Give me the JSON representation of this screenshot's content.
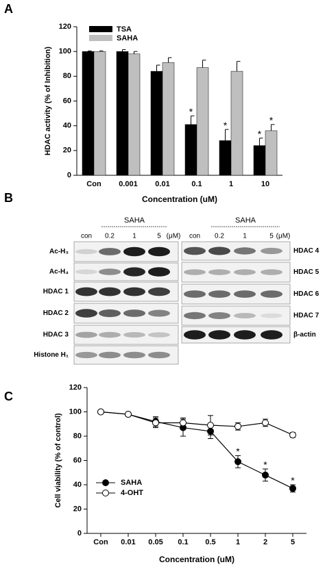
{
  "chart_data": [
    {
      "type": "bar",
      "label": "A",
      "y_label": "HDAC activity (% of Inhibition)",
      "x_label": "Concentration (uM)",
      "categories": [
        "Con",
        "0.001",
        "0.01",
        "0.1",
        "1",
        "10"
      ],
      "series": [
        {
          "name": "TSA",
          "color": "#000000",
          "values": [
            100,
            100,
            84,
            41,
            28,
            24
          ],
          "errors": [
            0.5,
            1.5,
            5,
            7,
            9,
            6
          ],
          "markers": [
            null,
            null,
            null,
            "*",
            "*",
            "*"
          ]
        },
        {
          "name": "SAHA",
          "color": "#bfbfbf",
          "values": [
            100,
            98,
            91,
            87,
            84,
            36
          ],
          "errors": [
            0.5,
            2,
            4,
            6,
            8,
            5
          ],
          "markers": [
            null,
            null,
            null,
            null,
            null,
            "*"
          ]
        }
      ],
      "ylim": [
        0,
        120
      ],
      "yticks": [
        0,
        20,
        40,
        60,
        80,
        100,
        120
      ]
    },
    {
      "type": "line",
      "label": "C",
      "y_label": "Cell viability (% of control)",
      "x_label": "Concentration (uM)",
      "categories": [
        "Con",
        "0.01",
        "0.05",
        "0.1",
        "0.5",
        "1",
        "2",
        "5"
      ],
      "series": [
        {
          "name": "SAHA",
          "color": "#000000",
          "marker_fill": "#000000",
          "values": [
            100,
            98,
            92,
            87,
            84,
            59,
            48,
            37
          ],
          "errors": [
            1,
            1,
            4,
            7,
            6,
            5,
            5,
            3
          ],
          "markers": [
            null,
            null,
            null,
            null,
            null,
            "*",
            "*",
            "*"
          ]
        },
        {
          "name": "4-OHT",
          "color": "#000000",
          "marker_fill": "#ffffff",
          "values": [
            100,
            98,
            91,
            91,
            89,
            88,
            91,
            81
          ],
          "errors": [
            1,
            1,
            4,
            4,
            8,
            3,
            3,
            2
          ],
          "markers": [
            null,
            null,
            null,
            null,
            null,
            null,
            null,
            null
          ]
        }
      ],
      "ylim": [
        0,
        120
      ],
      "yticks": [
        0,
        20,
        40,
        60,
        80,
        100,
        120
      ]
    }
  ],
  "blot_panel": {
    "label": "B",
    "left": {
      "control": "con",
      "treatment": "SAHA",
      "doses": [
        "0.2",
        "1",
        "5"
      ],
      "unit": "(μM)",
      "rows": [
        "Ac-H₃",
        "Ac-H₄",
        "HDAC 1",
        "HDAC 2",
        "HDAC 3",
        "Histone H₁"
      ]
    },
    "right": {
      "control": "con",
      "treatment": "SAHA",
      "doses": [
        "0.2",
        "1",
        "5"
      ],
      "unit": "(μM)",
      "rows": [
        "HDAC 4",
        "HDAC 5",
        "HDAC 6",
        "HDAC 7",
        "β-actin"
      ]
    }
  }
}
